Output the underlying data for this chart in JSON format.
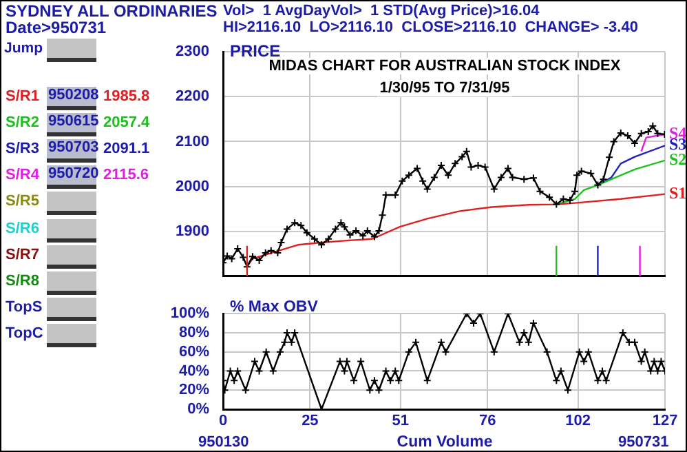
{
  "chart_data": [
    {
      "type": "line",
      "title": "MIDAS CHART FOR AUSTRALIAN STOCK INDEX",
      "subtitle": "1/30/95 TO 7/31/95",
      "ylabel": "PRICE",
      "annotations": [
        "SYDNEY ALL ORDINARIES",
        "Date>950731",
        "Vol>  1 AvgDayVol>  1 STD(Avg Price)>16.04",
        "HI>2116.10  LO>2116.10  CLOSE>2116.10  CHANGE> -3.40",
        "Jump",
        "S/R1",
        "950208",
        "1985.8",
        "S/R2",
        "950615",
        "2057.4",
        "S/R3",
        "950703",
        "2091.1",
        "S/R4",
        "950720",
        "2115.6",
        "S/R5",
        "S/R6",
        "S/R7",
        "S/R8",
        "TopS",
        "TopC"
      ],
      "xlim": [
        0,
        127
      ],
      "xticks": [
        0,
        25,
        51,
        76,
        102,
        127
      ],
      "ylim": [
        1800,
        2300
      ],
      "yticks": [
        1900,
        2000,
        2100,
        2200,
        2300
      ],
      "tick_labels": "y",
      "grid": true,
      "legend": false,
      "marker": "cross",
      "series": [
        {
          "color": "#000000",
          "x": [
            0,
            1.2,
            2.5,
            4.2,
            5.8,
            6.9,
            8.5,
            10.4,
            12.2,
            13.8,
            15.7,
            16.7,
            18.4,
            20.6,
            22.4,
            24.1,
            26.3,
            28.3,
            30.3,
            32.3,
            33.9,
            34.9,
            36.5,
            38.2,
            40.2,
            41.5,
            43.5,
            44.8,
            45.8,
            46.8,
            49.5,
            51.5,
            53.4,
            55.8,
            57.4,
            58.7,
            60.7,
            62.7,
            64.7,
            66.7,
            68.7,
            70,
            71.3,
            73.3,
            75.3,
            77.9,
            79.9,
            81.9,
            83.2,
            86.5,
            89.2,
            91.1,
            93.8,
            95.8,
            97.8,
            99.7,
            101.1,
            101.7,
            103,
            105.7,
            107.7,
            109.3,
            111,
            112.3,
            114.3,
            116.3,
            118.3,
            120.2,
            122.2,
            123.5,
            124.9,
            126.9
          ],
          "values": [
            1830,
            1845,
            1839,
            1861,
            1842,
            1821,
            1844,
            1835,
            1852,
            1857,
            1852,
            1875,
            1905,
            1919,
            1913,
            1897,
            1883,
            1870,
            1883,
            1905,
            1919,
            1910,
            1892,
            1901,
            1890,
            1901,
            1888,
            1901,
            1936,
            1981,
            1981,
            2012,
            2025,
            2040,
            2012,
            1994,
            2020,
            2047,
            2025,
            2051,
            2066,
            2078,
            2043,
            2047,
            2043,
            1994,
            2020,
            2040,
            2020,
            2016,
            2019,
            1989,
            1976,
            1960,
            1972,
            1969,
            1989,
            2025,
            2034,
            2029,
            2003,
            2016,
            2065,
            2100,
            2119,
            2113,
            2096,
            2118,
            2122,
            2135,
            2118,
            2116
          ]
        },
        {
          "name": "S1",
          "color": "#e02020",
          "marker": "none",
          "x": [
            6.9,
            8.5,
            21.7,
            28.3,
            34.9,
            42.9,
            50.8,
            58.7,
            68,
            77.2,
            87.8,
            95.8,
            101.1,
            114.3,
            127
          ],
          "values": [
            1821,
            1839,
            1870,
            1875,
            1879,
            1883,
            1910,
            1928,
            1945,
            1954,
            1959,
            1960,
            1963,
            1972,
            1983
          ]
        },
        {
          "name": "S2",
          "color": "#20c020",
          "marker": "none",
          "x": [
            95.8,
            101.1,
            103.7,
            107.7,
            111.6,
            118.3,
            127
          ],
          "values": [
            1960,
            1972,
            1992,
            2003,
            2016,
            2038,
            2058
          ]
        },
        {
          "name": "S3",
          "color": "#2020c0",
          "marker": "none",
          "x": [
            107.7,
            111.6,
            114.3,
            118.3,
            127
          ],
          "values": [
            2003,
            2020,
            2051,
            2066,
            2091
          ]
        },
        {
          "name": "S4",
          "color": "#e020e0",
          "marker": "none",
          "x": [
            120.2,
            121.6,
            127
          ],
          "values": [
            2078,
            2109,
            2116
          ]
        }
      ],
      "ref_lines": [
        {
          "axis": "x",
          "value": 6.9,
          "color": "#e02020"
        },
        {
          "axis": "x",
          "value": 95.8,
          "color": "#20c020"
        },
        {
          "axis": "x",
          "value": 107.7,
          "color": "#2020c0"
        },
        {
          "axis": "x",
          "value": 119.8,
          "color": "#e020e0"
        }
      ]
    },
    {
      "type": "line",
      "ylabel": "% Max OBV",
      "xlabel": "Cum Volume",
      "annotations": [
        "950130",
        "950731"
      ],
      "xlim": [
        0,
        127
      ],
      "xticks": [
        0,
        25,
        51,
        76,
        102,
        127
      ],
      "ylim": [
        0,
        100
      ],
      "yticks": [
        {
          "value": 0,
          "label": "0%"
        },
        {
          "value": 20,
          "label": "20%"
        },
        {
          "value": 40,
          "label": "40%"
        },
        {
          "value": 60,
          "label": "60%"
        },
        {
          "value": 80,
          "label": "80%"
        },
        {
          "value": 100,
          "label": "100%"
        }
      ],
      "grid": true,
      "legend": false,
      "marker": "cross",
      "series": [
        {
          "color": "#000000",
          "x": [
            0,
            0.5,
            2.1,
            3.2,
            4.2,
            6.5,
            9.1,
            10.4,
            12.4,
            14.4,
            16.4,
            17.7,
            18.4,
            19.7,
            20.6,
            28.3,
            33.6,
            34.9,
            35.6,
            37.6,
            39.6,
            42.2,
            43.5,
            44.8,
            46.8,
            48.1,
            49.5,
            50.5,
            53.4,
            55.4,
            58.7,
            62.7,
            64,
            70,
            72,
            73.9,
            77.9,
            81.9,
            85.2,
            86.5,
            87.8,
            89.2,
            93.1,
            95.8,
            97.1,
            99.1,
            102.4,
            103.7,
            105,
            107.7,
            109,
            110.1,
            114.9,
            116.7,
            118.3,
            120.2,
            121.2,
            122.9,
            123.9,
            124.9,
            125.9,
            127
          ],
          "values": [
            30,
            20,
            40,
            30,
            40,
            20,
            50,
            40,
            60,
            40,
            60,
            70,
            80,
            70,
            80,
            0,
            50,
            40,
            50,
            30,
            50,
            20,
            30,
            20,
            40,
            30,
            40,
            30,
            60,
            70,
            30,
            70,
            60,
            100,
            90,
            100,
            60,
            100,
            70,
            80,
            70,
            90,
            60,
            30,
            40,
            20,
            60,
            50,
            60,
            30,
            40,
            30,
            80,
            70,
            70,
            50,
            60,
            40,
            50,
            40,
            50,
            40
          ]
        }
      ]
    }
  ]
}
